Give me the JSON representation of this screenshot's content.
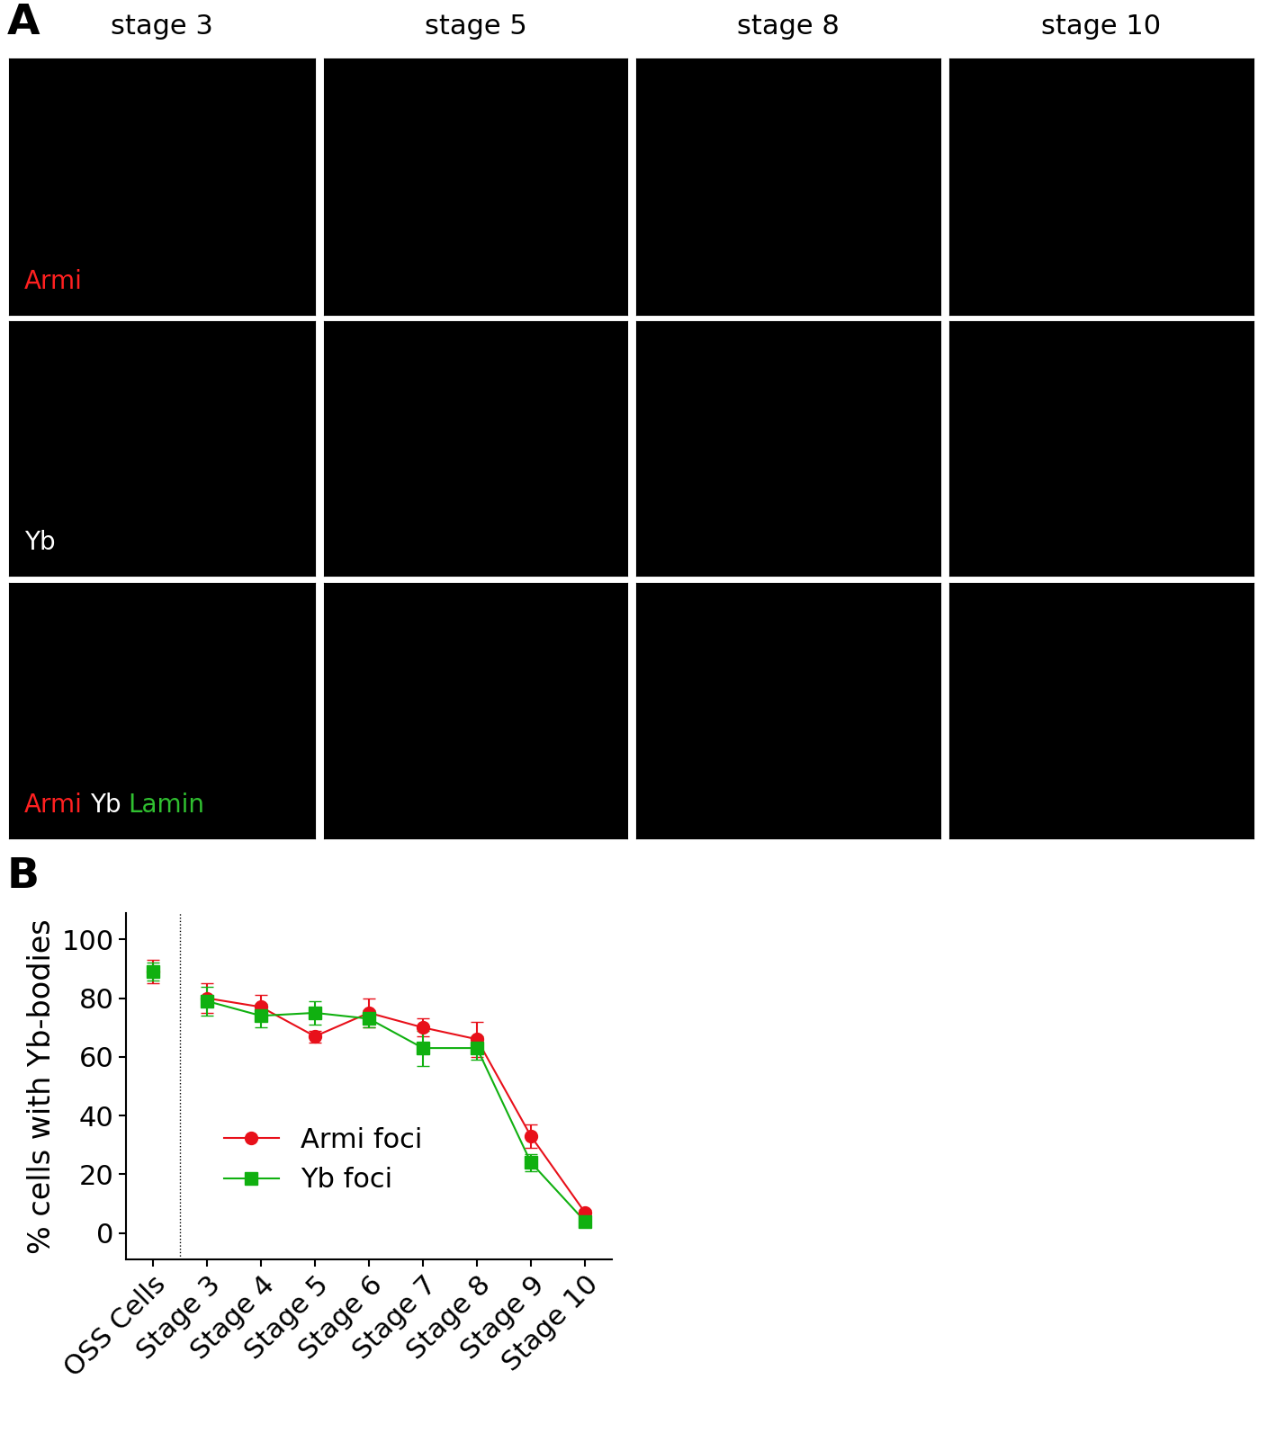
{
  "panel_labels": [
    "A",
    "B"
  ],
  "image_panel": {
    "columns": [
      "stage 3",
      "stage 5",
      "stage 8",
      "stage 10"
    ],
    "rows": [
      [
        {
          "text": "Armi",
          "color": "#ff2020"
        }
      ],
      [
        {
          "text": "Yb",
          "color": "#ffffff"
        }
      ],
      [
        {
          "text": "Armi",
          "color": "#ff2020"
        },
        {
          "text": "Yb",
          "color": "#ffffff"
        },
        {
          "text": "Lamin",
          "color": "#30c030"
        }
      ]
    ]
  },
  "chart_data": {
    "type": "line",
    "categories": [
      "OSS Cells",
      "Stage 3",
      "Stage 4",
      "Stage 5",
      "Stage 6",
      "Stage 7",
      "Stage 8",
      "Stage 9",
      "Stage 10"
    ],
    "y_label": "% cells with Yb-bodies",
    "ylim": [
      -9,
      109
    ],
    "yticks": [
      0,
      20,
      40,
      60,
      80,
      100
    ],
    "legend": "lower left",
    "series": [
      {
        "name": "Armi foci",
        "color": "#e8101a",
        "marker": "circle",
        "values": [
          89,
          80,
          77,
          67,
          75,
          70,
          66,
          33,
          7
        ],
        "errors": [
          4,
          5,
          4,
          2,
          5,
          3,
          6,
          4,
          1
        ]
      },
      {
        "name": "Yb foci",
        "color": "#10b010",
        "marker": "square",
        "values": [
          89,
          79,
          74,
          75,
          73,
          63,
          63,
          24,
          4
        ],
        "errors": [
          3,
          5,
          4,
          4,
          3,
          6,
          4,
          3,
          1
        ]
      }
    ]
  }
}
